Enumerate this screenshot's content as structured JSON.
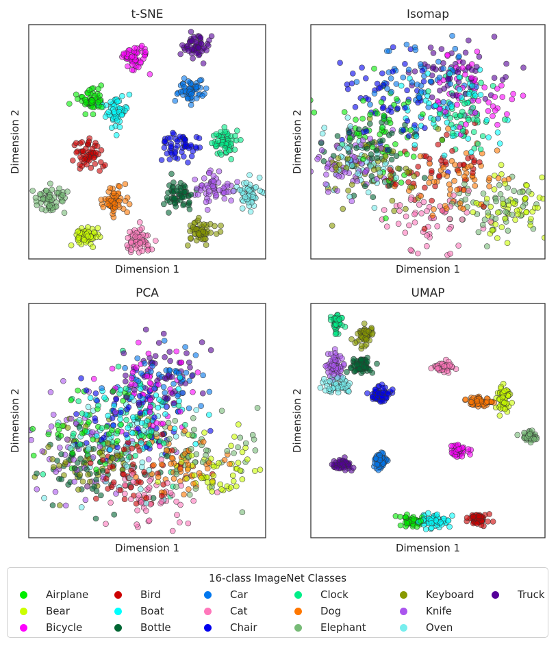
{
  "legend": {
    "title": "16-class ImageNet Classes",
    "entries": [
      {
        "label": "Airplane",
        "color": "#00ee00"
      },
      {
        "label": "Bear",
        "color": "#ccff00"
      },
      {
        "label": "Bicycle",
        "color": "#ff00ff"
      },
      {
        "label": "Bird",
        "color": "#cc0000"
      },
      {
        "label": "Boat",
        "color": "#00ffff"
      },
      {
        "label": "Bottle",
        "color": "#006633"
      },
      {
        "label": "Car",
        "color": "#0077ee"
      },
      {
        "label": "Cat",
        "color": "#ff77bb"
      },
      {
        "label": "Chair",
        "color": "#0000ee"
      },
      {
        "label": "Clock",
        "color": "#00ee88"
      },
      {
        "label": "Dog",
        "color": "#ff7700"
      },
      {
        "label": "Elephant",
        "color": "#77bb77"
      },
      {
        "label": "Keyboard",
        "color": "#889900"
      },
      {
        "label": "Knife",
        "color": "#aa55ee"
      },
      {
        "label": "Oven",
        "color": "#77eeee"
      },
      {
        "label": "Truck",
        "color": "#550099"
      }
    ]
  },
  "chart_data": [
    {
      "type": "scatter",
      "title": "t-SNE",
      "xlabel": "Dimension 1",
      "ylabel": "Dimension 2",
      "xlim": [
        0,
        1
      ],
      "ylim": [
        0,
        1
      ],
      "ticks": "none",
      "clusters": [
        {
          "class": "Airplane",
          "center": [
            0.26,
            0.67
          ],
          "spread": [
            0.03,
            0.025
          ],
          "n": 55
        },
        {
          "class": "Bear",
          "center": [
            0.24,
            0.1
          ],
          "spread": [
            0.03,
            0.022
          ],
          "n": 55
        },
        {
          "class": "Bicycle",
          "center": [
            0.45,
            0.86
          ],
          "spread": [
            0.025,
            0.03
          ],
          "n": 55
        },
        {
          "class": "Bird",
          "center": [
            0.25,
            0.45
          ],
          "spread": [
            0.03,
            0.035
          ],
          "n": 55
        },
        {
          "class": "Boat",
          "center": [
            0.37,
            0.63
          ],
          "spread": [
            0.03,
            0.035
          ],
          "n": 55
        },
        {
          "class": "Bottle",
          "center": [
            0.64,
            0.27
          ],
          "spread": [
            0.03,
            0.03
          ],
          "n": 55
        },
        {
          "class": "Car",
          "center": [
            0.68,
            0.72
          ],
          "spread": [
            0.03,
            0.025
          ],
          "n": 55
        },
        {
          "class": "Cat",
          "center": [
            0.46,
            0.08
          ],
          "spread": [
            0.025,
            0.03
          ],
          "n": 55
        },
        {
          "class": "Chair",
          "center": [
            0.63,
            0.48
          ],
          "spread": [
            0.035,
            0.03
          ],
          "n": 55
        },
        {
          "class": "Clock",
          "center": [
            0.83,
            0.49
          ],
          "spread": [
            0.03,
            0.03
          ],
          "n": 55
        },
        {
          "class": "Dog",
          "center": [
            0.37,
            0.24
          ],
          "spread": [
            0.025,
            0.03
          ],
          "n": 55
        },
        {
          "class": "Elephant",
          "center": [
            0.1,
            0.26
          ],
          "spread": [
            0.03,
            0.028
          ],
          "n": 55
        },
        {
          "class": "Keyboard",
          "center": [
            0.73,
            0.11
          ],
          "spread": [
            0.03,
            0.025
          ],
          "n": 55
        },
        {
          "class": "Knife",
          "center": [
            0.79,
            0.31
          ],
          "spread": [
            0.04,
            0.03
          ],
          "n": 55
        },
        {
          "class": "Oven",
          "center": [
            0.93,
            0.28
          ],
          "spread": [
            0.025,
            0.03
          ],
          "n": 55
        },
        {
          "class": "Truck",
          "center": [
            0.71,
            0.91
          ],
          "spread": [
            0.03,
            0.025
          ],
          "n": 55
        }
      ]
    },
    {
      "type": "scatter",
      "title": "Isomap",
      "xlabel": "Dimension 1",
      "ylabel": "Dimension 2",
      "xlim": [
        0,
        1
      ],
      "ylim": [
        0,
        1
      ],
      "ticks": "none",
      "clusters": [
        {
          "class": "Airplane",
          "center": [
            0.3,
            0.55
          ],
          "spread": [
            0.12,
            0.1
          ],
          "n": 55
        },
        {
          "class": "Bear",
          "center": [
            0.86,
            0.22
          ],
          "spread": [
            0.08,
            0.07
          ],
          "n": 55
        },
        {
          "class": "Bicycle",
          "center": [
            0.68,
            0.7
          ],
          "spread": [
            0.12,
            0.1
          ],
          "n": 55
        },
        {
          "class": "Bird",
          "center": [
            0.52,
            0.38
          ],
          "spread": [
            0.12,
            0.08
          ],
          "n": 55
        },
        {
          "class": "Boat",
          "center": [
            0.55,
            0.65
          ],
          "spread": [
            0.12,
            0.1
          ],
          "n": 55
        },
        {
          "class": "Bottle",
          "center": [
            0.25,
            0.45
          ],
          "spread": [
            0.1,
            0.08
          ],
          "n": 55
        },
        {
          "class": "Car",
          "center": [
            0.45,
            0.75
          ],
          "spread": [
            0.12,
            0.08
          ],
          "n": 55
        },
        {
          "class": "Cat",
          "center": [
            0.52,
            0.18
          ],
          "spread": [
            0.1,
            0.08
          ],
          "n": 55
        },
        {
          "class": "Chair",
          "center": [
            0.32,
            0.65
          ],
          "spread": [
            0.12,
            0.1
          ],
          "n": 55
        },
        {
          "class": "Clock",
          "center": [
            0.65,
            0.62
          ],
          "spread": [
            0.06,
            0.08
          ],
          "n": 55
        },
        {
          "class": "Dog",
          "center": [
            0.6,
            0.35
          ],
          "spread": [
            0.12,
            0.08
          ],
          "n": 55
        },
        {
          "class": "Elephant",
          "center": [
            0.8,
            0.22
          ],
          "spread": [
            0.1,
            0.07
          ],
          "n": 55
        },
        {
          "class": "Keyboard",
          "center": [
            0.28,
            0.4
          ],
          "spread": [
            0.12,
            0.09
          ],
          "n": 55
        },
        {
          "class": "Knife",
          "center": [
            0.15,
            0.4
          ],
          "spread": [
            0.1,
            0.08
          ],
          "n": 55
        },
        {
          "class": "Oven",
          "center": [
            0.2,
            0.42
          ],
          "spread": [
            0.08,
            0.07
          ],
          "n": 55
        },
        {
          "class": "Truck",
          "center": [
            0.62,
            0.8
          ],
          "spread": [
            0.1,
            0.07
          ],
          "n": 55
        }
      ]
    },
    {
      "type": "scatter",
      "title": "PCA",
      "xlabel": "Dimension 1",
      "ylabel": "Dimension 2",
      "xlim": [
        0,
        1
      ],
      "ylim": [
        0,
        1
      ],
      "ticks": "none",
      "clusters": [
        {
          "class": "Airplane",
          "center": [
            0.28,
            0.45
          ],
          "spread": [
            0.13,
            0.1
          ],
          "n": 55
        },
        {
          "class": "Bear",
          "center": [
            0.78,
            0.3
          ],
          "spread": [
            0.1,
            0.08
          ],
          "n": 55
        },
        {
          "class": "Bicycle",
          "center": [
            0.52,
            0.6
          ],
          "spread": [
            0.1,
            0.1
          ],
          "n": 55
        },
        {
          "class": "Bird",
          "center": [
            0.45,
            0.28
          ],
          "spread": [
            0.12,
            0.08
          ],
          "n": 55
        },
        {
          "class": "Boat",
          "center": [
            0.45,
            0.52
          ],
          "spread": [
            0.12,
            0.1
          ],
          "n": 55
        },
        {
          "class": "Bottle",
          "center": [
            0.28,
            0.3
          ],
          "spread": [
            0.12,
            0.08
          ],
          "n": 55
        },
        {
          "class": "Car",
          "center": [
            0.55,
            0.65
          ],
          "spread": [
            0.1,
            0.08
          ],
          "n": 55
        },
        {
          "class": "Cat",
          "center": [
            0.5,
            0.18
          ],
          "spread": [
            0.12,
            0.07
          ],
          "n": 55
        },
        {
          "class": "Chair",
          "center": [
            0.4,
            0.52
          ],
          "spread": [
            0.12,
            0.09
          ],
          "n": 55
        },
        {
          "class": "Clock",
          "center": [
            0.45,
            0.48
          ],
          "spread": [
            0.14,
            0.12
          ],
          "n": 55
        },
        {
          "class": "Dog",
          "center": [
            0.65,
            0.3
          ],
          "spread": [
            0.1,
            0.07
          ],
          "n": 55
        },
        {
          "class": "Elephant",
          "center": [
            0.72,
            0.38
          ],
          "spread": [
            0.12,
            0.09
          ],
          "n": 55
        },
        {
          "class": "Keyboard",
          "center": [
            0.25,
            0.35
          ],
          "spread": [
            0.12,
            0.08
          ],
          "n": 55
        },
        {
          "class": "Knife",
          "center": [
            0.22,
            0.38
          ],
          "spread": [
            0.12,
            0.1
          ],
          "n": 55
        },
        {
          "class": "Oven",
          "center": [
            0.4,
            0.4
          ],
          "spread": [
            0.14,
            0.1
          ],
          "n": 55
        },
        {
          "class": "Truck",
          "center": [
            0.55,
            0.68
          ],
          "spread": [
            0.08,
            0.08
          ],
          "n": 55
        }
      ]
    },
    {
      "type": "scatter",
      "title": "UMAP",
      "xlabel": "Dimension 1",
      "ylabel": "Dimension 2",
      "xlim": [
        0,
        1
      ],
      "ylim": [
        0,
        1
      ],
      "ticks": "none",
      "clusters": [
        {
          "class": "Airplane",
          "center": [
            0.42,
            0.07
          ],
          "spread": [
            0.025,
            0.015
          ],
          "n": 55
        },
        {
          "class": "Bear",
          "center": [
            0.82,
            0.59
          ],
          "spread": [
            0.015,
            0.03
          ],
          "n": 55
        },
        {
          "class": "Bicycle",
          "center": [
            0.63,
            0.37
          ],
          "spread": [
            0.018,
            0.014
          ],
          "n": 55
        },
        {
          "class": "Bird",
          "center": [
            0.72,
            0.08
          ],
          "spread": [
            0.02,
            0.012
          ],
          "n": 55
        },
        {
          "class": "Boat",
          "center": [
            0.52,
            0.07
          ],
          "spread": [
            0.035,
            0.018
          ],
          "n": 55
        },
        {
          "class": "Bottle",
          "center": [
            0.22,
            0.73
          ],
          "spread": [
            0.02,
            0.02
          ],
          "n": 55
        },
        {
          "class": "Car",
          "center": [
            0.3,
            0.33
          ],
          "spread": [
            0.015,
            0.02
          ],
          "n": 55
        },
        {
          "class": "Cat",
          "center": [
            0.56,
            0.73
          ],
          "spread": [
            0.02,
            0.01
          ],
          "n": 55
        },
        {
          "class": "Chair",
          "center": [
            0.3,
            0.61
          ],
          "spread": [
            0.02,
            0.02
          ],
          "n": 55
        },
        {
          "class": "Clock",
          "center": [
            0.11,
            0.92
          ],
          "spread": [
            0.01,
            0.02
          ],
          "n": 55
        },
        {
          "class": "Dog",
          "center": [
            0.72,
            0.58
          ],
          "spread": [
            0.03,
            0.01
          ],
          "n": 55
        },
        {
          "class": "Elephant",
          "center": [
            0.93,
            0.43
          ],
          "spread": [
            0.018,
            0.01
          ],
          "n": 55
        },
        {
          "class": "Keyboard",
          "center": [
            0.23,
            0.86
          ],
          "spread": [
            0.015,
            0.02
          ],
          "n": 55
        },
        {
          "class": "Knife",
          "center": [
            0.1,
            0.73
          ],
          "spread": [
            0.018,
            0.03
          ],
          "n": 55
        },
        {
          "class": "Oven",
          "center": [
            0.11,
            0.65
          ],
          "spread": [
            0.03,
            0.02
          ],
          "n": 55
        },
        {
          "class": "Truck",
          "center": [
            0.14,
            0.31
          ],
          "spread": [
            0.02,
            0.01
          ],
          "n": 55
        }
      ]
    }
  ]
}
